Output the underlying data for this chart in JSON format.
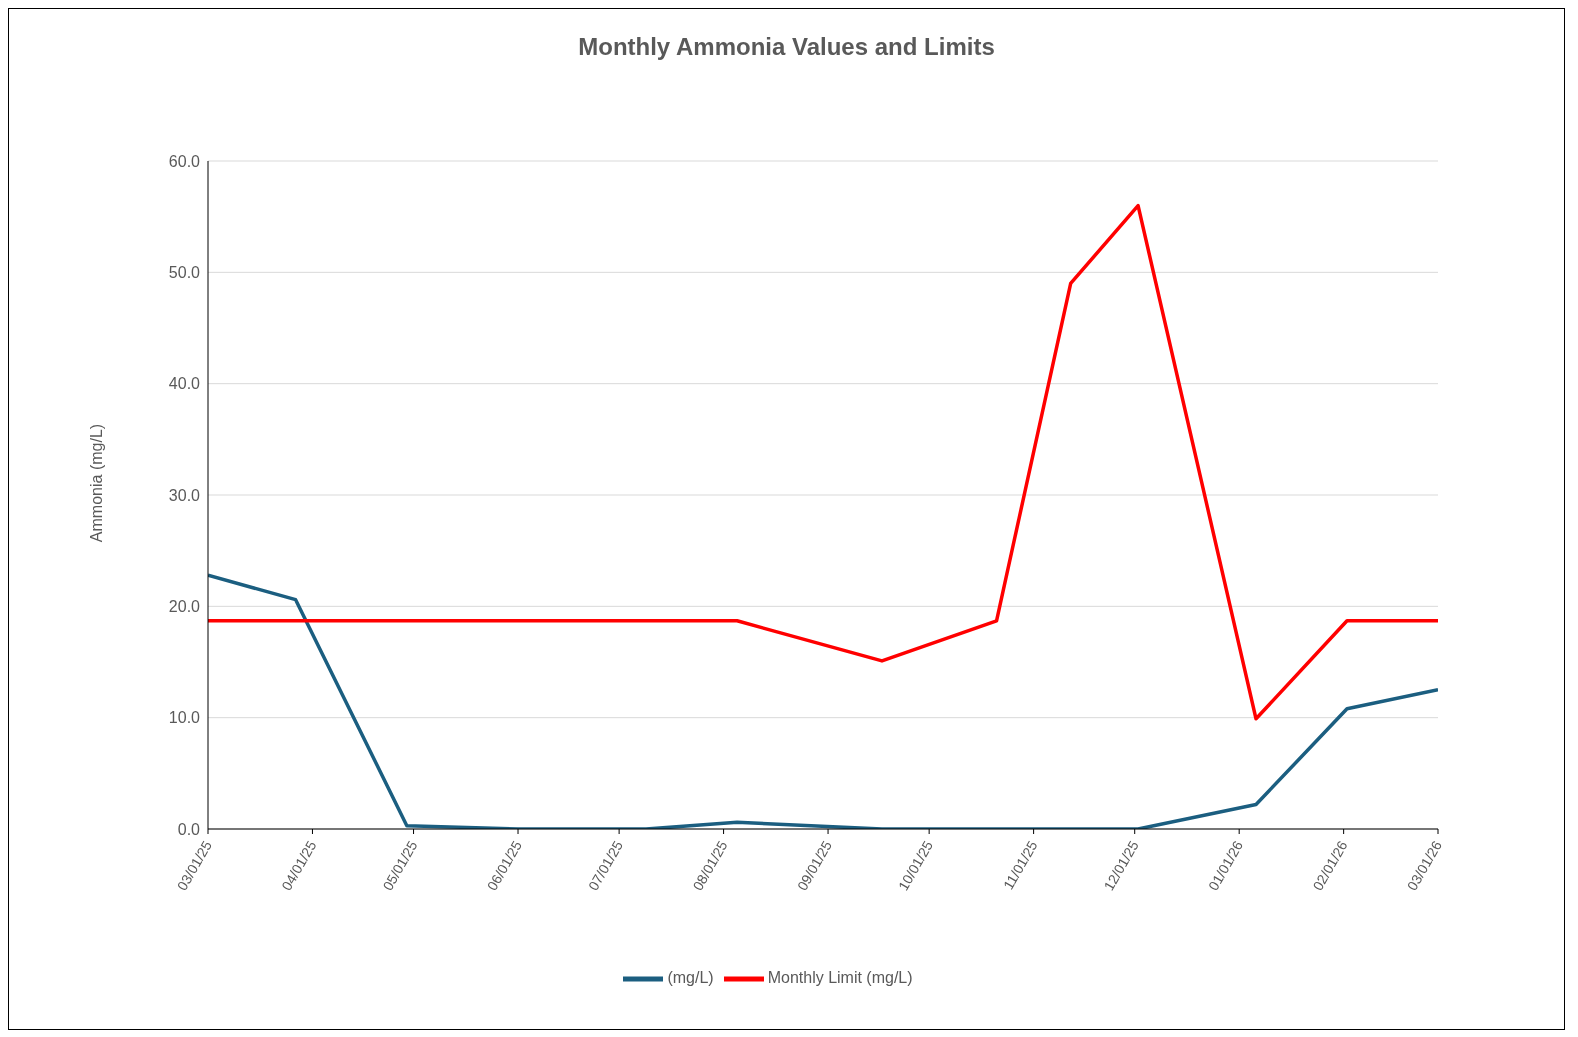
{
  "chart_data": {
    "type": "line",
    "title": "Monthly Ammonia Values and Limits",
    "ylabel": "Ammonia (mg/L)",
    "x": [
      "2025-03-01",
      "2025-03-27",
      "2025-04-29",
      "2025-06-01",
      "2025-07-09",
      "2025-08-05",
      "2025-09-17",
      "2025-10-21",
      "2025-11-12",
      "2025-12-02",
      "2026-01-06",
      "2026-02-02",
      "2026-03-01"
    ],
    "series": [
      {
        "name": "(mg/L)",
        "color": "#1b5e80",
        "values": [
          22.8,
          20.6,
          0.3,
          0,
          0,
          0.6,
          0,
          0,
          0,
          0,
          2.2,
          10.8,
          12.5
        ]
      },
      {
        "name": "Monthly Limit (mg/L)",
        "color": "#ff0000",
        "values": [
          18.7,
          18.7,
          18.7,
          18.7,
          18.7,
          18.7,
          15.1,
          18.7,
          49.0,
          56.0,
          9.9,
          18.7,
          18.7
        ]
      }
    ],
    "xlim": [
      "2025-03-01",
      "2026-03-01"
    ],
    "xticks": [
      {
        "value": "2025-03-01",
        "label": "03/01/25"
      },
      {
        "value": "2025-04-01",
        "label": "04/01/25"
      },
      {
        "value": "2025-05-01",
        "label": "05/01/25"
      },
      {
        "value": "2025-06-01",
        "label": "06/01/25"
      },
      {
        "value": "2025-07-01",
        "label": "07/01/25"
      },
      {
        "value": "2025-08-01",
        "label": "08/01/25"
      },
      {
        "value": "2025-09-01",
        "label": "09/01/25"
      },
      {
        "value": "2025-10-01",
        "label": "10/01/25"
      },
      {
        "value": "2025-11-01",
        "label": "11/01/25"
      },
      {
        "value": "2025-12-01",
        "label": "12/01/25"
      },
      {
        "value": "2026-01-01",
        "label": "01/01/26"
      },
      {
        "value": "2026-02-01",
        "label": "02/01/26"
      },
      {
        "value": "2026-03-01",
        "label": "03/01/26"
      }
    ],
    "ylim": [
      0,
      60
    ],
    "yticks": [
      {
        "value": 0,
        "label": "0.0"
      },
      {
        "value": 10,
        "label": "10.0"
      },
      {
        "value": 20,
        "label": "20.0"
      },
      {
        "value": 30,
        "label": "30.0"
      },
      {
        "value": 40,
        "label": "40.0"
      },
      {
        "value": 50,
        "label": "50.0"
      },
      {
        "value": 60,
        "label": "60.0"
      }
    ],
    "grid": "y",
    "legend": "bottom",
    "marker": "none",
    "line_style": "solid"
  }
}
